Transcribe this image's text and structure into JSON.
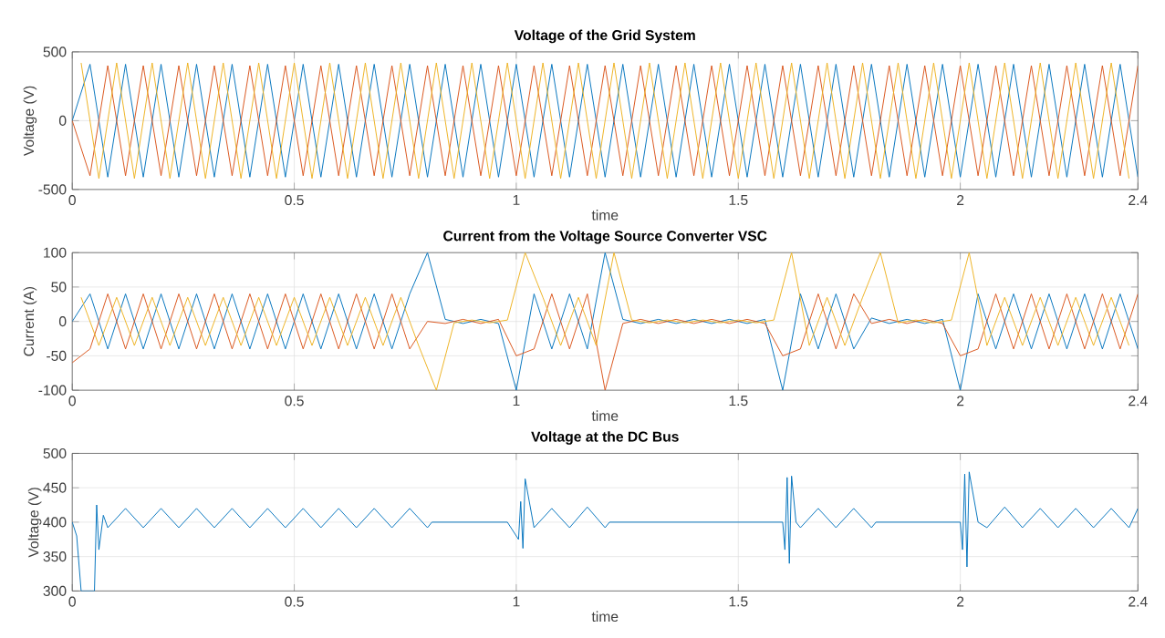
{
  "chart_data": [
    {
      "type": "line",
      "title": "Voltage of the Grid System",
      "xlabel": "time",
      "ylabel": "Voltage (V)",
      "xlim": [
        0,
        2.4
      ],
      "ylim": [
        -500,
        500
      ],
      "xticks": [
        0,
        0.5,
        1,
        1.5,
        2,
        2.4
      ],
      "yticks": [
        -500,
        0,
        500
      ],
      "grid": true,
      "x": [
        0,
        0.04,
        0.08,
        0.12,
        0.16,
        0.2,
        0.24,
        0.28,
        0.32,
        0.36,
        0.4,
        0.44,
        0.48,
        0.52,
        0.56,
        0.6,
        0.64,
        0.68,
        0.72,
        0.76,
        0.8,
        0.84,
        0.88,
        0.92,
        0.96,
        1,
        1.04,
        1.08,
        1.12,
        1.16,
        1.2,
        1.24,
        1.28,
        1.32,
        1.36,
        1.4,
        1.44,
        1.48,
        1.52,
        1.56,
        1.6,
        1.64,
        1.68,
        1.72,
        1.76,
        1.8,
        1.84,
        1.88,
        1.92,
        1.96,
        2,
        2.04,
        2.08,
        2.12,
        2.16,
        2.2,
        2.24,
        2.28,
        2.32,
        2.36,
        2.4
      ],
      "series": [
        {
          "color": "#0072bd",
          "values": [
            0,
            410,
            -410,
            410,
            -410,
            410,
            -410,
            410,
            -410,
            410,
            -410,
            410,
            -410,
            410,
            -410,
            410,
            -410,
            410,
            -410,
            410,
            -410,
            410,
            -410,
            410,
            -410,
            410,
            -410,
            410,
            -410,
            410,
            -410,
            410,
            -410,
            410,
            -410,
            410,
            -410,
            410,
            -410,
            410,
            -410,
            410,
            -410,
            410,
            -410,
            410,
            -410,
            410,
            -410,
            410,
            -410,
            410,
            -410,
            410,
            -410,
            410,
            -410,
            410,
            -410,
            410,
            -410
          ]
        },
        {
          "color": "#d95319",
          "values": [
            0,
            -400,
            400,
            -400,
            400,
            -400,
            400,
            -400,
            400,
            -400,
            400,
            -400,
            400,
            -400,
            400,
            -400,
            400,
            -400,
            400,
            -400,
            400,
            -400,
            400,
            -400,
            400,
            -400,
            400,
            -400,
            400,
            -400,
            400,
            -400,
            400,
            -400,
            400,
            -400,
            400,
            -400,
            400,
            -400,
            400,
            -400,
            400,
            -400,
            400,
            -400,
            400,
            -400,
            400,
            -400,
            400,
            -400,
            400,
            -400,
            400,
            -400,
            400,
            -400,
            400,
            -400,
            400
          ]
        },
        {
          "color": "#edb120",
          "x": [
            0.02,
            0.06,
            0.1,
            0.14,
            0.18,
            0.22,
            0.26,
            0.3,
            0.34,
            0.38,
            0.42,
            0.46,
            0.5,
            0.54,
            0.58,
            0.62,
            0.66,
            0.7,
            0.74,
            0.78,
            0.82,
            0.86,
            0.9,
            0.94,
            0.98,
            1.02,
            1.06,
            1.1,
            1.14,
            1.18,
            1.22,
            1.26,
            1.3,
            1.34,
            1.38,
            1.42,
            1.46,
            1.5,
            1.54,
            1.58,
            1.62,
            1.66,
            1.7,
            1.74,
            1.78,
            1.82,
            1.86,
            1.9,
            1.94,
            1.98,
            2.02,
            2.06,
            2.1,
            2.14,
            2.18,
            2.22,
            2.26,
            2.3,
            2.34,
            2.38
          ],
          "values": [
            420,
            -420,
            420,
            -420,
            420,
            -420,
            420,
            -420,
            420,
            -420,
            420,
            -420,
            420,
            -420,
            420,
            -420,
            420,
            -420,
            420,
            -420,
            420,
            -420,
            420,
            -420,
            420,
            -420,
            420,
            -420,
            420,
            -420,
            420,
            -420,
            420,
            -420,
            420,
            -420,
            420,
            -420,
            420,
            -420,
            420,
            -420,
            420,
            -420,
            420,
            -420,
            420,
            -420,
            420,
            -420,
            420,
            -420,
            420,
            -420,
            420,
            -420,
            420,
            -420,
            420,
            -420
          ]
        }
      ]
    },
    {
      "type": "line",
      "title": "Current from the Voltage Source Converter VSC",
      "xlabel": "time",
      "ylabel": "Current (A)",
      "xlim": [
        0,
        2.4
      ],
      "ylim": [
        -100,
        100
      ],
      "xticks": [
        0,
        0.5,
        1,
        1.5,
        2,
        2.4
      ],
      "yticks": [
        -100,
        -50,
        0,
        50,
        100
      ],
      "grid": true,
      "x": [
        0,
        0.04,
        0.08,
        0.12,
        0.16,
        0.2,
        0.24,
        0.28,
        0.32,
        0.36,
        0.4,
        0.44,
        0.48,
        0.52,
        0.56,
        0.6,
        0.64,
        0.68,
        0.72,
        0.76,
        0.8,
        0.84,
        0.88,
        0.92,
        0.96,
        1,
        1.04,
        1.08,
        1.12,
        1.16,
        1.2,
        1.24,
        1.28,
        1.32,
        1.36,
        1.4,
        1.44,
        1.48,
        1.52,
        1.56,
        1.6,
        1.64,
        1.68,
        1.72,
        1.76,
        1.8,
        1.84,
        1.88,
        1.92,
        1.96,
        2,
        2.04,
        2.08,
        2.12,
        2.16,
        2.2,
        2.24,
        2.28,
        2.32,
        2.36,
        2.4
      ],
      "series": [
        {
          "color": "#0072bd",
          "values": [
            0,
            40,
            -40,
            40,
            -40,
            40,
            -40,
            40,
            -40,
            40,
            -40,
            40,
            -40,
            40,
            -40,
            40,
            -40,
            40,
            -40,
            40,
            100,
            3,
            -3,
            3,
            -3,
            -100,
            40,
            -40,
            40,
            -40,
            100,
            3,
            -3,
            3,
            -3,
            3,
            -3,
            3,
            -3,
            3,
            -100,
            40,
            -40,
            40,
            -40,
            5,
            -3,
            3,
            -3,
            3,
            -100,
            40,
            -40,
            40,
            -40,
            40,
            -40,
            40,
            -40,
            40,
            -40
          ]
        },
        {
          "color": "#d95319",
          "values": [
            -60,
            -40,
            40,
            -40,
            40,
            -40,
            40,
            -40,
            40,
            -40,
            40,
            -40,
            40,
            -40,
            40,
            -40,
            40,
            -40,
            40,
            -40,
            0,
            -3,
            3,
            -3,
            3,
            -50,
            -40,
            40,
            -40,
            40,
            -100,
            -3,
            3,
            -3,
            3,
            -3,
            3,
            -3,
            3,
            -3,
            -50,
            -40,
            40,
            -40,
            40,
            -3,
            3,
            -3,
            3,
            -3,
            -50,
            -40,
            40,
            -40,
            40,
            -40,
            40,
            -40,
            40,
            -40,
            40
          ]
        },
        {
          "color": "#edb120",
          "x": [
            0.02,
            0.06,
            0.1,
            0.14,
            0.18,
            0.22,
            0.26,
            0.3,
            0.34,
            0.38,
            0.42,
            0.46,
            0.5,
            0.54,
            0.58,
            0.62,
            0.66,
            0.7,
            0.74,
            0.78,
            0.82,
            0.86,
            0.9,
            0.94,
            0.98,
            1.02,
            1.06,
            1.1,
            1.14,
            1.18,
            1.22,
            1.26,
            1.3,
            1.34,
            1.38,
            1.42,
            1.46,
            1.5,
            1.54,
            1.58,
            1.62,
            1.66,
            1.7,
            1.74,
            1.78,
            1.82,
            1.86,
            1.9,
            1.94,
            1.98,
            2.02,
            2.06,
            2.1,
            2.14,
            2.18,
            2.22,
            2.26,
            2.3,
            2.34,
            2.38
          ],
          "values": [
            35,
            -35,
            35,
            -35,
            35,
            -35,
            35,
            -35,
            35,
            -35,
            35,
            -35,
            35,
            -35,
            35,
            -35,
            35,
            -35,
            35,
            -35,
            -100,
            -2,
            2,
            -2,
            2,
            100,
            35,
            -35,
            35,
            -35,
            100,
            2,
            -2,
            2,
            -2,
            2,
            -2,
            2,
            -2,
            2,
            100,
            -35,
            35,
            -35,
            35,
            100,
            -2,
            2,
            -2,
            2,
            100,
            -35,
            35,
            -35,
            35,
            -35,
            35,
            -35,
            35,
            -35
          ]
        }
      ]
    },
    {
      "type": "line",
      "title": "Voltage at the DC Bus",
      "xlabel": "time",
      "ylabel": "Voltage (V)",
      "xlim": [
        0,
        2.4
      ],
      "ylim": [
        300,
        500
      ],
      "xticks": [
        0,
        0.5,
        1,
        1.5,
        2,
        2.4
      ],
      "yticks": [
        300,
        350,
        400,
        450,
        500
      ],
      "grid": true,
      "x": [
        0,
        0.01,
        0.02,
        0.05,
        0.055,
        0.06,
        0.07,
        0.08,
        0.12,
        0.16,
        0.2,
        0.24,
        0.28,
        0.32,
        0.36,
        0.4,
        0.44,
        0.48,
        0.52,
        0.56,
        0.6,
        0.64,
        0.68,
        0.72,
        0.76,
        0.8,
        0.81,
        0.98,
        1.005,
        1.01,
        1.015,
        1.02,
        1.04,
        1.08,
        1.12,
        1.16,
        1.2,
        1.21,
        1.6,
        1.605,
        1.61,
        1.615,
        1.62,
        1.63,
        1.64,
        1.68,
        1.72,
        1.76,
        1.8,
        1.81,
        2,
        2.005,
        2.01,
        2.015,
        2.02,
        2.04,
        2.06,
        2.1,
        2.14,
        2.18,
        2.22,
        2.26,
        2.3,
        2.34,
        2.38,
        2.4
      ],
      "series": [
        {
          "color": "#0072bd",
          "values": [
            400,
            380,
            300,
            300,
            425,
            360,
            410,
            392,
            420,
            392,
            420,
            392,
            420,
            392,
            420,
            392,
            420,
            392,
            420,
            392,
            420,
            392,
            420,
            392,
            420,
            392,
            400,
            400,
            375,
            430,
            362,
            463,
            392,
            420,
            392,
            422,
            392,
            400,
            400,
            360,
            465,
            340,
            467,
            400,
            392,
            420,
            392,
            420,
            392,
            400,
            400,
            360,
            470,
            335,
            473,
            400,
            392,
            422,
            392,
            420,
            392,
            420,
            392,
            420,
            392,
            420
          ]
        }
      ]
    }
  ]
}
